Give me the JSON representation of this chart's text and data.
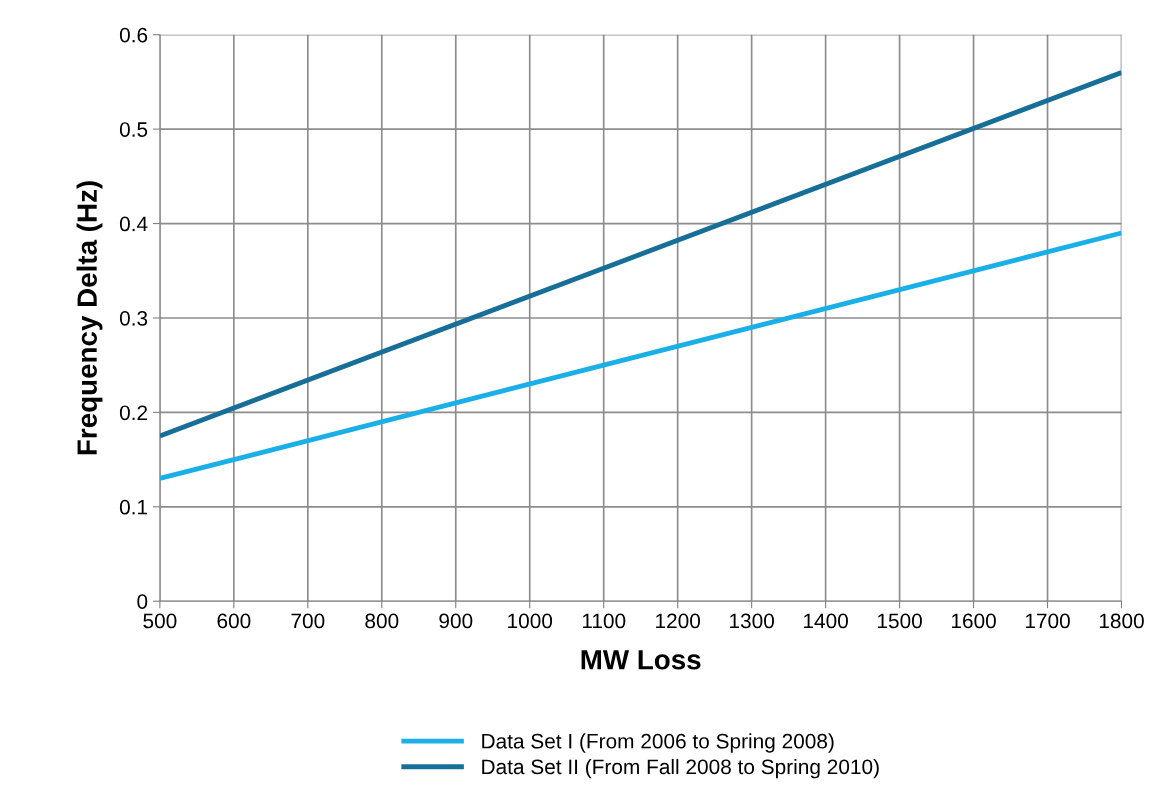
{
  "chart_data": {
    "type": "line",
    "xlabel": "MW Loss",
    "ylabel": "Frequency Delta (Hz)",
    "x": [
      500,
      1800
    ],
    "series": [
      {
        "name": "Data Set I (From 2006 to Spring 2008)",
        "color": "#1aafe6",
        "values": [
          0.13,
          0.39
        ]
      },
      {
        "name": "Data Set II (From Fall 2008 to Spring 2010)",
        "color": "#176f98",
        "values": [
          0.175,
          0.56
        ]
      }
    ],
    "xlim": [
      500,
      1800
    ],
    "xticks": [
      500,
      600,
      700,
      800,
      900,
      1000,
      1100,
      1200,
      1300,
      1400,
      1500,
      1600,
      1700,
      1800
    ],
    "ylim": [
      0,
      0.6
    ],
    "yticks": [
      {
        "value": 0,
        "label": "0"
      },
      0.1,
      0.2,
      0.3,
      0.4,
      0.5,
      0.6
    ],
    "grid": true,
    "legend": "bottom",
    "marker": "none",
    "line_style": "solid"
  }
}
